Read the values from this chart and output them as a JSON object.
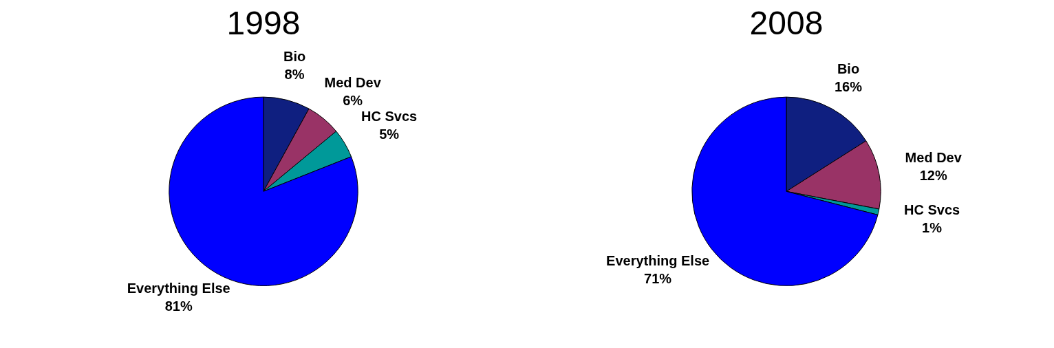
{
  "chart_data": [
    {
      "type": "pie",
      "title": "1998",
      "categories": [
        "Bio",
        "Med Dev",
        "HC Svcs",
        "Everything Else"
      ],
      "values": [
        8,
        6,
        5,
        81
      ],
      "colors": [
        "#0f1f80",
        "#993366",
        "#009999",
        "#0000ff"
      ],
      "value_labels": [
        "8%",
        "6%",
        "5%",
        "81%"
      ],
      "legend": false
    },
    {
      "type": "pie",
      "title": "2008",
      "categories": [
        "Bio",
        "Med Dev",
        "HC Svcs",
        "Everything Else"
      ],
      "values": [
        16,
        12,
        1,
        71
      ],
      "colors": [
        "#0f1f80",
        "#993366",
        "#009999",
        "#0000ff"
      ],
      "value_labels": [
        "16%",
        "12%",
        "1%",
        "71%"
      ],
      "legend": false
    }
  ]
}
